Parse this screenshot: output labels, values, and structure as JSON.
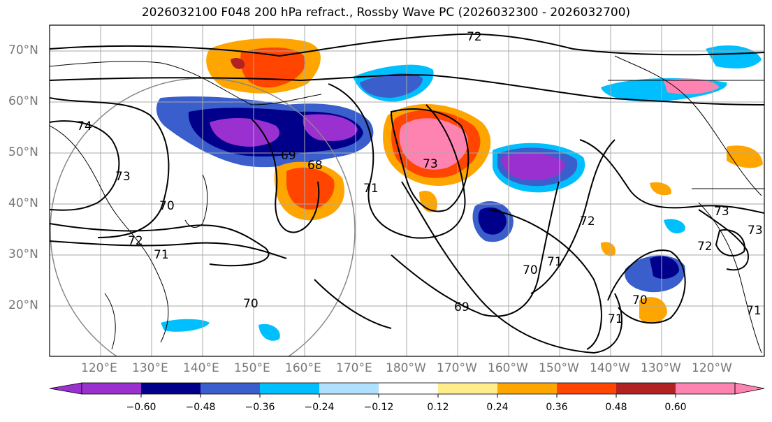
{
  "title": "2026032100 F048 200 hPa refract., Rossby Wave PC (2026032300 - 2026032700)",
  "lat_labels": [
    "70°N",
    "60°N",
    "50°N",
    "40°N",
    "30°N",
    "20°N"
  ],
  "lon_labels": [
    "120°E",
    "130°E",
    "140°E",
    "150°E",
    "160°E",
    "170°E",
    "180°W",
    "170°W",
    "160°W",
    "150°W",
    "140°W",
    "130°W",
    "120°W"
  ],
  "contour_labels": [
    "72",
    "74",
    "73",
    "70",
    "72",
    "71",
    "69",
    "68",
    "73",
    "71",
    "69",
    "70",
    "71",
    "72",
    "70",
    "71",
    "73",
    "72",
    "73",
    "71",
    "70"
  ],
  "colorbar": {
    "colors": [
      "#9b30d0",
      "#00008b",
      "#3a5fcd",
      "#00bfff",
      "#b0e0ff",
      "#ffffff",
      "#ffec8b",
      "#ffa500",
      "#ff4500",
      "#b22222",
      "#ff83b0"
    ],
    "ticks": [
      "−0.60",
      "−0.48",
      "−0.36",
      "−0.24",
      "−0.12",
      "0.12",
      "0.24",
      "0.36",
      "0.48",
      "0.60"
    ]
  },
  "colors": {
    "purple": "#9b30d0",
    "navy": "#00008b",
    "blue": "#3a5fcd",
    "cyan": "#00bfff",
    "lightblue": "#b0e0ff",
    "yellow": "#ffec8b",
    "orange": "#ffa500",
    "redorange": "#ff4500",
    "darkred": "#b22222",
    "pink": "#ff83b0"
  }
}
